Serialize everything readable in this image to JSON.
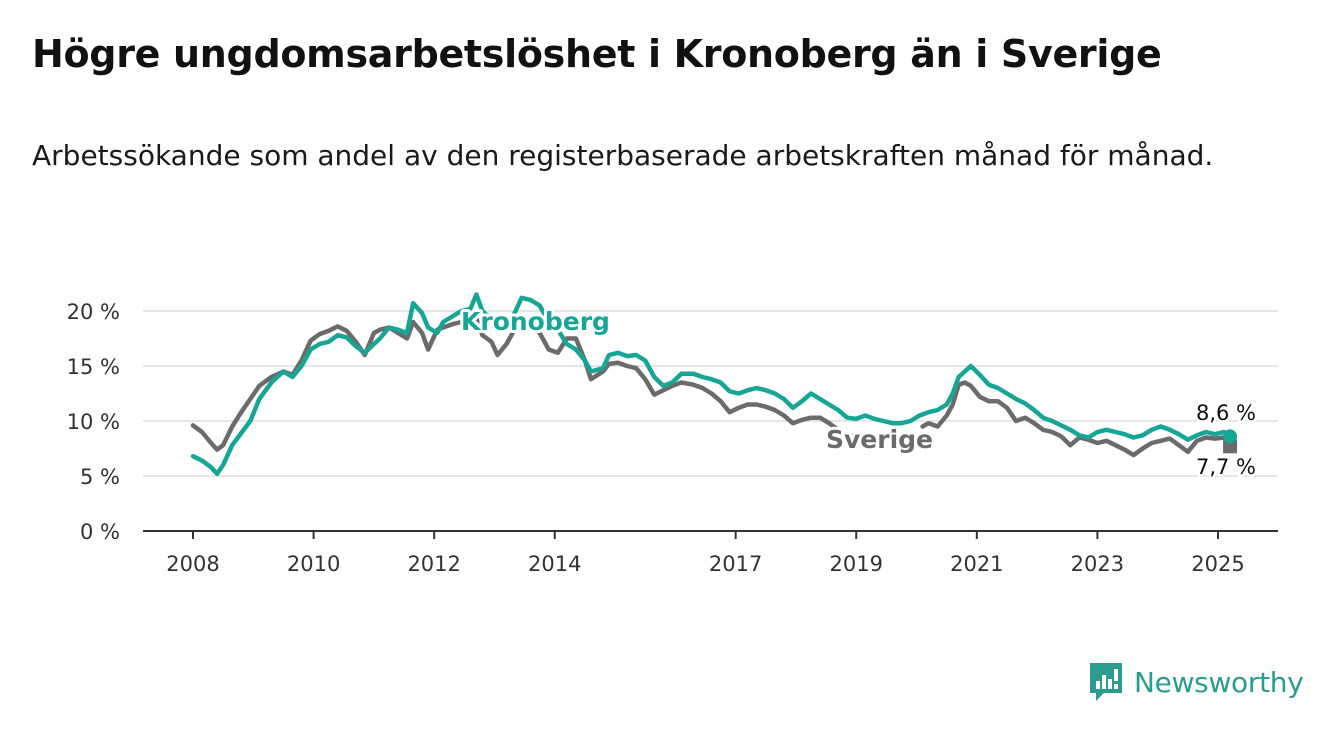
{
  "title": "Högre ungdomsarbetslöshet i Kronoberg än i Sverige",
  "subtitle": "Arbetssökande som andel av den registerbaserade arbetskraften månad för månad.",
  "brand": "Newsworthy",
  "colors": {
    "kronoberg": "#17a596",
    "sverige": "#6b6b6b",
    "grid": "#dddddd",
    "axis": "#333333",
    "brand": "#2a9d8f"
  },
  "chart_data": {
    "type": "line",
    "y_tick_labels": [
      "0 %",
      "5 %",
      "10 %",
      "15 %",
      "20 %"
    ],
    "y_ticks": [
      0,
      5,
      10,
      15,
      20
    ],
    "ylim": [
      0,
      20
    ],
    "x_tick_labels": [
      "2008",
      "2010",
      "2012",
      "2014",
      "2017",
      "2019",
      "2021",
      "2023",
      "2025"
    ],
    "x_ticks": [
      2008,
      2010,
      2012,
      2014,
      2017,
      2019,
      2021,
      2023,
      2025
    ],
    "xlim": [
      2008,
      2025.2
    ],
    "grid": true,
    "series": [
      {
        "name": "Kronoberg",
        "end_label": "8,6 %",
        "points": [
          [
            2008.0,
            6.8
          ],
          [
            2008.15,
            6.4
          ],
          [
            2008.3,
            5.8
          ],
          [
            2008.4,
            5.2
          ],
          [
            2008.5,
            6.0
          ],
          [
            2008.65,
            7.8
          ],
          [
            2008.8,
            8.9
          ],
          [
            2008.95,
            10.0
          ],
          [
            2009.1,
            12.0
          ],
          [
            2009.3,
            13.5
          ],
          [
            2009.5,
            14.5
          ],
          [
            2009.65,
            14.0
          ],
          [
            2009.8,
            15.0
          ],
          [
            2009.95,
            16.5
          ],
          [
            2010.1,
            17.0
          ],
          [
            2010.25,
            17.2
          ],
          [
            2010.4,
            17.8
          ],
          [
            2010.55,
            17.6
          ],
          [
            2010.7,
            16.8
          ],
          [
            2010.85,
            16.2
          ],
          [
            2011.0,
            17.0
          ],
          [
            2011.1,
            17.5
          ],
          [
            2011.25,
            18.5
          ],
          [
            2011.4,
            18.3
          ],
          [
            2011.55,
            18.0
          ],
          [
            2011.65,
            20.7
          ],
          [
            2011.8,
            19.8
          ],
          [
            2011.9,
            18.5
          ],
          [
            2012.05,
            18.0
          ],
          [
            2012.15,
            19.0
          ],
          [
            2012.3,
            19.5
          ],
          [
            2012.45,
            20.0
          ],
          [
            2012.6,
            20.2
          ],
          [
            2012.7,
            21.5
          ],
          [
            2012.8,
            20.0
          ],
          [
            2012.95,
            19.2
          ],
          [
            2013.05,
            18.5
          ],
          [
            2013.2,
            18.3
          ],
          [
            2013.35,
            20.0
          ],
          [
            2013.45,
            21.2
          ],
          [
            2013.6,
            21.0
          ],
          [
            2013.75,
            20.5
          ],
          [
            2013.9,
            19.0
          ],
          [
            2014.05,
            18.3
          ],
          [
            2014.2,
            17.0
          ],
          [
            2014.35,
            16.5
          ],
          [
            2014.5,
            15.5
          ],
          [
            2014.6,
            14.5
          ],
          [
            2014.8,
            14.8
          ],
          [
            2014.9,
            16.0
          ],
          [
            2015.05,
            16.2
          ],
          [
            2015.2,
            15.9
          ],
          [
            2015.35,
            16.0
          ],
          [
            2015.5,
            15.5
          ],
          [
            2015.65,
            14.0
          ],
          [
            2015.8,
            13.2
          ],
          [
            2015.95,
            13.5
          ],
          [
            2016.1,
            14.3
          ],
          [
            2016.3,
            14.3
          ],
          [
            2016.45,
            14.0
          ],
          [
            2016.6,
            13.8
          ],
          [
            2016.75,
            13.5
          ],
          [
            2016.9,
            12.7
          ],
          [
            2017.05,
            12.5
          ],
          [
            2017.2,
            12.8
          ],
          [
            2017.35,
            13.0
          ],
          [
            2017.5,
            12.8
          ],
          [
            2017.65,
            12.5
          ],
          [
            2017.8,
            12.0
          ],
          [
            2017.95,
            11.2
          ],
          [
            2018.1,
            11.8
          ],
          [
            2018.25,
            12.5
          ],
          [
            2018.4,
            12.0
          ],
          [
            2018.55,
            11.5
          ],
          [
            2018.7,
            11.0
          ],
          [
            2018.85,
            10.3
          ],
          [
            2019.0,
            10.2
          ],
          [
            2019.15,
            10.5
          ],
          [
            2019.3,
            10.2
          ],
          [
            2019.45,
            10.0
          ],
          [
            2019.6,
            9.8
          ],
          [
            2019.75,
            9.8
          ],
          [
            2019.9,
            10.0
          ],
          [
            2020.05,
            10.5
          ],
          [
            2020.2,
            10.8
          ],
          [
            2020.35,
            11.0
          ],
          [
            2020.5,
            11.5
          ],
          [
            2020.6,
            12.5
          ],
          [
            2020.7,
            14.0
          ],
          [
            2020.8,
            14.5
          ],
          [
            2020.9,
            15.0
          ],
          [
            2021.05,
            14.2
          ],
          [
            2021.2,
            13.3
          ],
          [
            2021.35,
            13.0
          ],
          [
            2021.5,
            12.5
          ],
          [
            2021.65,
            12.0
          ],
          [
            2021.8,
            11.6
          ],
          [
            2021.95,
            11.0
          ],
          [
            2022.1,
            10.3
          ],
          [
            2022.25,
            10.0
          ],
          [
            2022.4,
            9.6
          ],
          [
            2022.55,
            9.2
          ],
          [
            2022.7,
            8.7
          ],
          [
            2022.85,
            8.5
          ],
          [
            2023.0,
            9.0
          ],
          [
            2023.15,
            9.2
          ],
          [
            2023.3,
            9.0
          ],
          [
            2023.45,
            8.8
          ],
          [
            2023.6,
            8.5
          ],
          [
            2023.75,
            8.7
          ],
          [
            2023.9,
            9.2
          ],
          [
            2024.05,
            9.5
          ],
          [
            2024.2,
            9.2
          ],
          [
            2024.35,
            8.8
          ],
          [
            2024.5,
            8.3
          ],
          [
            2024.65,
            8.7
          ],
          [
            2024.8,
            9.0
          ],
          [
            2024.95,
            8.8
          ],
          [
            2025.1,
            9.0
          ],
          [
            2025.2,
            8.6
          ]
        ]
      },
      {
        "name": "Sverige",
        "end_label": "7,7 %",
        "points": [
          [
            2008.0,
            9.6
          ],
          [
            2008.15,
            9.0
          ],
          [
            2008.3,
            8.0
          ],
          [
            2008.4,
            7.4
          ],
          [
            2008.5,
            7.8
          ],
          [
            2008.65,
            9.5
          ],
          [
            2008.8,
            10.8
          ],
          [
            2008.95,
            12.0
          ],
          [
            2009.1,
            13.2
          ],
          [
            2009.3,
            14.0
          ],
          [
            2009.5,
            14.5
          ],
          [
            2009.65,
            14.2
          ],
          [
            2009.8,
            15.5
          ],
          [
            2009.95,
            17.3
          ],
          [
            2010.1,
            17.9
          ],
          [
            2010.25,
            18.2
          ],
          [
            2010.4,
            18.6
          ],
          [
            2010.55,
            18.2
          ],
          [
            2010.7,
            17.2
          ],
          [
            2010.85,
            16.0
          ],
          [
            2011.0,
            18.0
          ],
          [
            2011.1,
            18.3
          ],
          [
            2011.25,
            18.5
          ],
          [
            2011.4,
            18.0
          ],
          [
            2011.55,
            17.5
          ],
          [
            2011.65,
            19.0
          ],
          [
            2011.8,
            18.0
          ],
          [
            2011.9,
            16.5
          ],
          [
            2012.05,
            18.3
          ],
          [
            2012.15,
            18.5
          ],
          [
            2012.3,
            18.8
          ],
          [
            2012.45,
            19.0
          ],
          [
            2012.6,
            19.2
          ],
          [
            2012.7,
            19.3
          ],
          [
            2012.8,
            17.8
          ],
          [
            2012.95,
            17.2
          ],
          [
            2013.05,
            16.0
          ],
          [
            2013.2,
            17.0
          ],
          [
            2013.35,
            18.5
          ],
          [
            2013.45,
            19.0
          ],
          [
            2013.6,
            18.8
          ],
          [
            2013.75,
            18.0
          ],
          [
            2013.9,
            16.5
          ],
          [
            2014.05,
            16.2
          ],
          [
            2014.2,
            17.5
          ],
          [
            2014.35,
            17.5
          ],
          [
            2014.5,
            15.5
          ],
          [
            2014.6,
            13.8
          ],
          [
            2014.8,
            14.5
          ],
          [
            2014.9,
            15.2
          ],
          [
            2015.05,
            15.3
          ],
          [
            2015.2,
            15.0
          ],
          [
            2015.35,
            14.8
          ],
          [
            2015.5,
            13.8
          ],
          [
            2015.65,
            12.4
          ],
          [
            2015.8,
            12.8
          ],
          [
            2015.95,
            13.2
          ],
          [
            2016.1,
            13.5
          ],
          [
            2016.3,
            13.3
          ],
          [
            2016.45,
            13.0
          ],
          [
            2016.6,
            12.5
          ],
          [
            2016.75,
            11.8
          ],
          [
            2016.9,
            10.8
          ],
          [
            2017.05,
            11.2
          ],
          [
            2017.2,
            11.5
          ],
          [
            2017.35,
            11.5
          ],
          [
            2017.5,
            11.3
          ],
          [
            2017.65,
            11.0
          ],
          [
            2017.8,
            10.5
          ],
          [
            2017.95,
            9.8
          ],
          [
            2018.1,
            10.1
          ],
          [
            2018.25,
            10.3
          ],
          [
            2018.4,
            10.3
          ],
          [
            2018.55,
            9.8
          ],
          [
            2018.7,
            9.2
          ],
          [
            2018.85,
            8.4
          ],
          [
            2019.0,
            8.8
          ]
        ],
        "points_after_label": [
          [
            2020.1,
            9.5
          ],
          [
            2020.2,
            9.8
          ],
          [
            2020.35,
            9.5
          ],
          [
            2020.5,
            10.5
          ],
          [
            2020.6,
            11.5
          ],
          [
            2020.7,
            13.3
          ],
          [
            2020.8,
            13.5
          ],
          [
            2020.9,
            13.2
          ],
          [
            2021.05,
            12.2
          ],
          [
            2021.2,
            11.8
          ],
          [
            2021.35,
            11.8
          ],
          [
            2021.5,
            11.2
          ],
          [
            2021.65,
            10.0
          ],
          [
            2021.8,
            10.3
          ],
          [
            2021.95,
            9.8
          ],
          [
            2022.1,
            9.2
          ],
          [
            2022.25,
            9.0
          ],
          [
            2022.4,
            8.6
          ],
          [
            2022.55,
            7.8
          ],
          [
            2022.7,
            8.5
          ],
          [
            2022.85,
            8.3
          ],
          [
            2023.0,
            8.0
          ],
          [
            2023.15,
            8.2
          ],
          [
            2023.3,
            7.8
          ],
          [
            2023.45,
            7.4
          ],
          [
            2023.6,
            6.9
          ],
          [
            2023.75,
            7.5
          ],
          [
            2023.9,
            8.0
          ],
          [
            2024.05,
            8.2
          ],
          [
            2024.2,
            8.4
          ],
          [
            2024.35,
            7.8
          ],
          [
            2024.5,
            7.2
          ],
          [
            2024.65,
            8.2
          ],
          [
            2024.8,
            8.5
          ],
          [
            2024.95,
            8.4
          ],
          [
            2025.1,
            8.5
          ],
          [
            2025.2,
            7.7
          ]
        ]
      }
    ]
  }
}
